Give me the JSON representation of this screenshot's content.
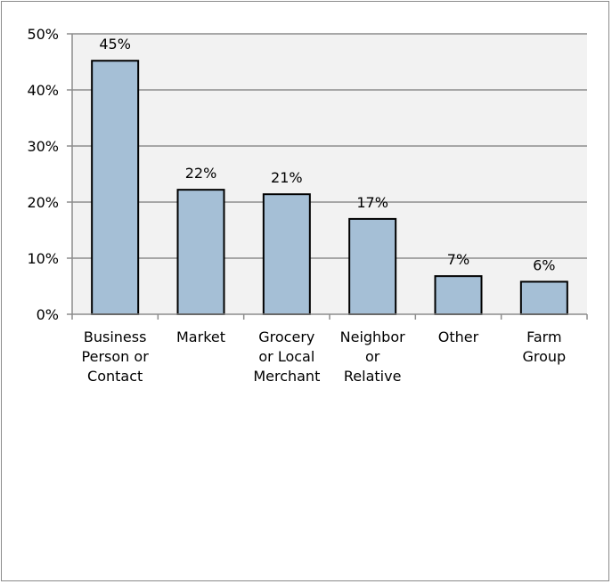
{
  "chart_data": {
    "type": "bar",
    "categories": [
      [
        "Business",
        "Person or",
        "Contact"
      ],
      [
        "Market"
      ],
      [
        "Grocery",
        "or Local",
        "Merchant"
      ],
      [
        "Neighbor",
        "or",
        "Relative"
      ],
      [
        "Other"
      ],
      [
        "Farm",
        "Group"
      ]
    ],
    "values": [
      45.2,
      22.2,
      21.4,
      17.0,
      6.8,
      5.8
    ],
    "data_labels": [
      "45%",
      "22%",
      "21%",
      "17%",
      "7%",
      "6%"
    ],
    "ylim": [
      0,
      50
    ],
    "y_ticks": [
      0,
      10,
      20,
      30,
      40,
      50
    ],
    "y_tick_labels": [
      "0%",
      "10%",
      "20%",
      "30%",
      "40%",
      "50%"
    ],
    "grid": true,
    "bar_color": "#a5bfd6",
    "plot_background": "#f2f2f2",
    "title": "",
    "xlabel": "",
    "ylabel": ""
  }
}
